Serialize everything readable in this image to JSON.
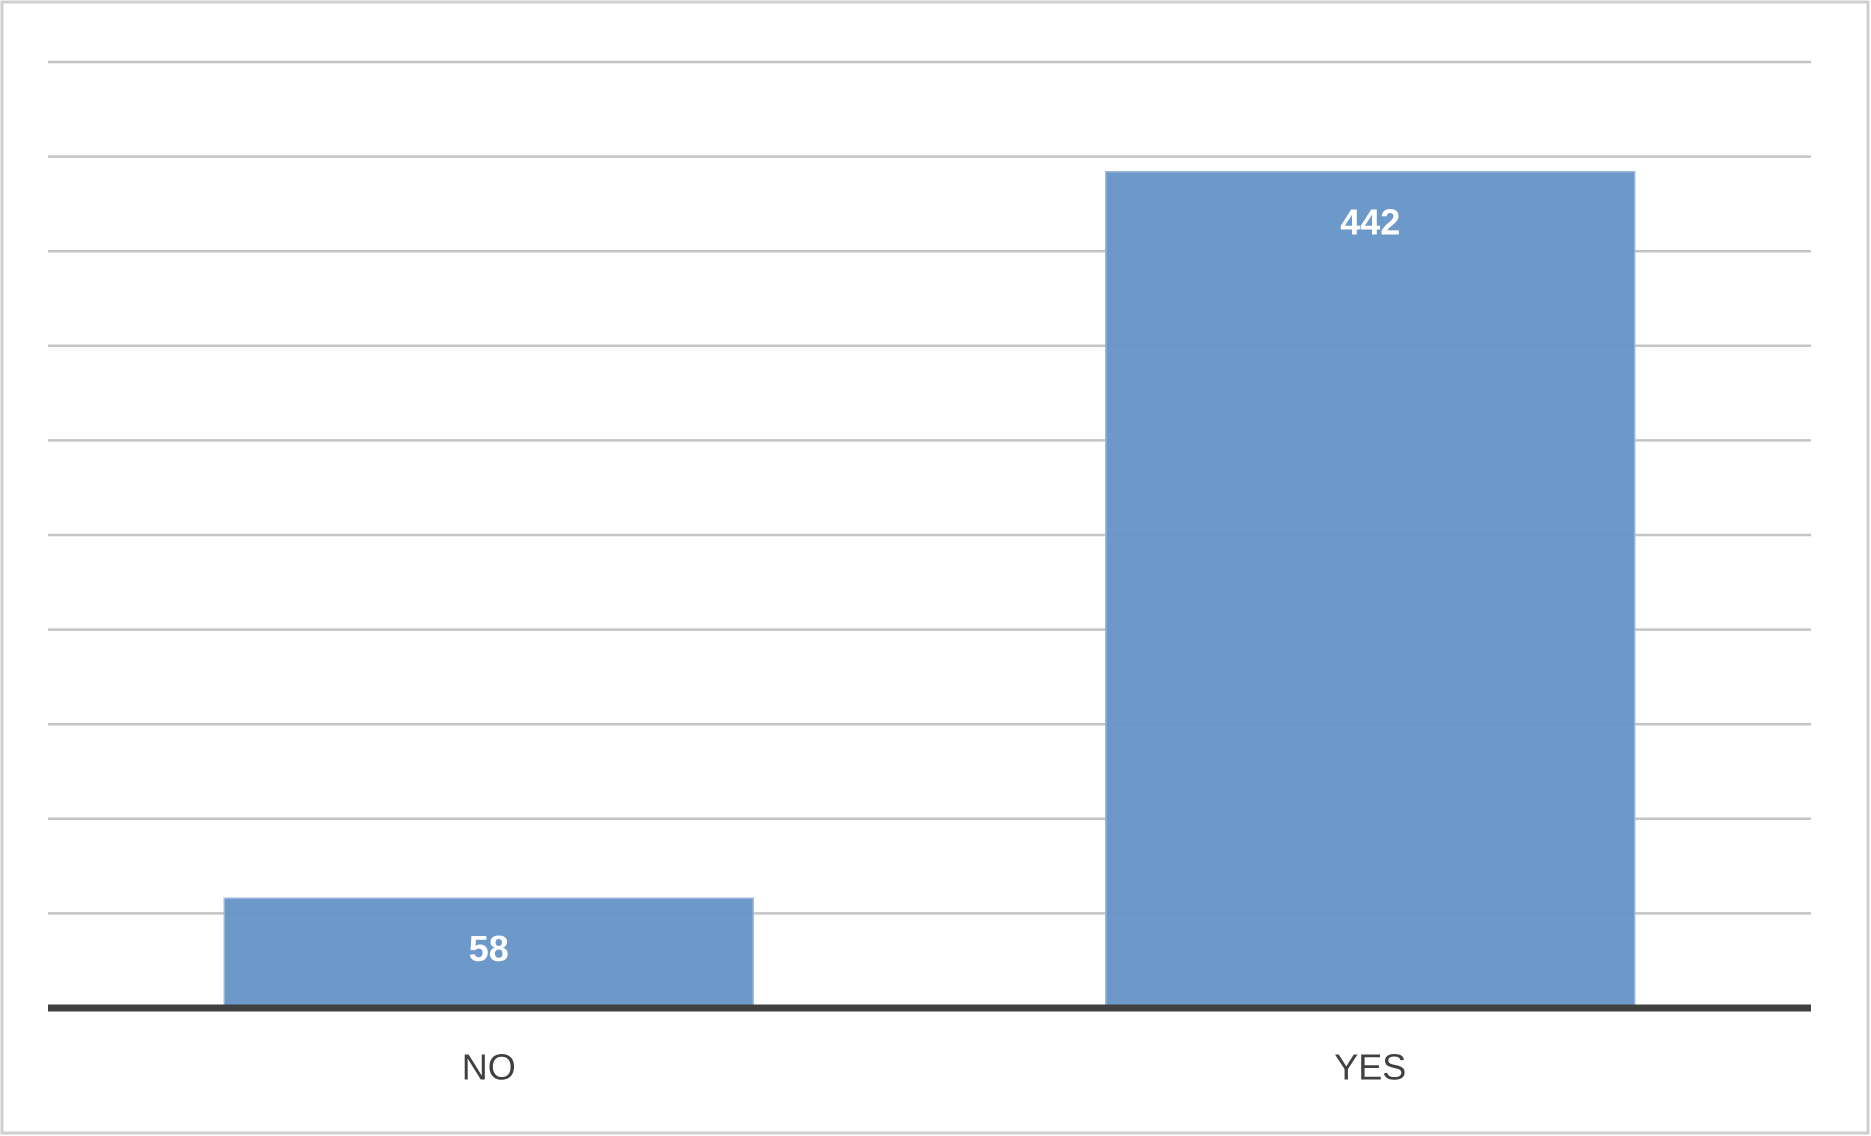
{
  "chart_data": {
    "type": "bar",
    "categories": [
      "NO",
      "YES"
    ],
    "values": [
      58,
      442
    ],
    "color": "#6795c8",
    "ylim": [
      0,
      500
    ],
    "yticks": [
      0,
      50,
      100,
      150,
      200,
      250,
      300,
      350,
      400,
      450,
      500
    ],
    "grid": true
  }
}
